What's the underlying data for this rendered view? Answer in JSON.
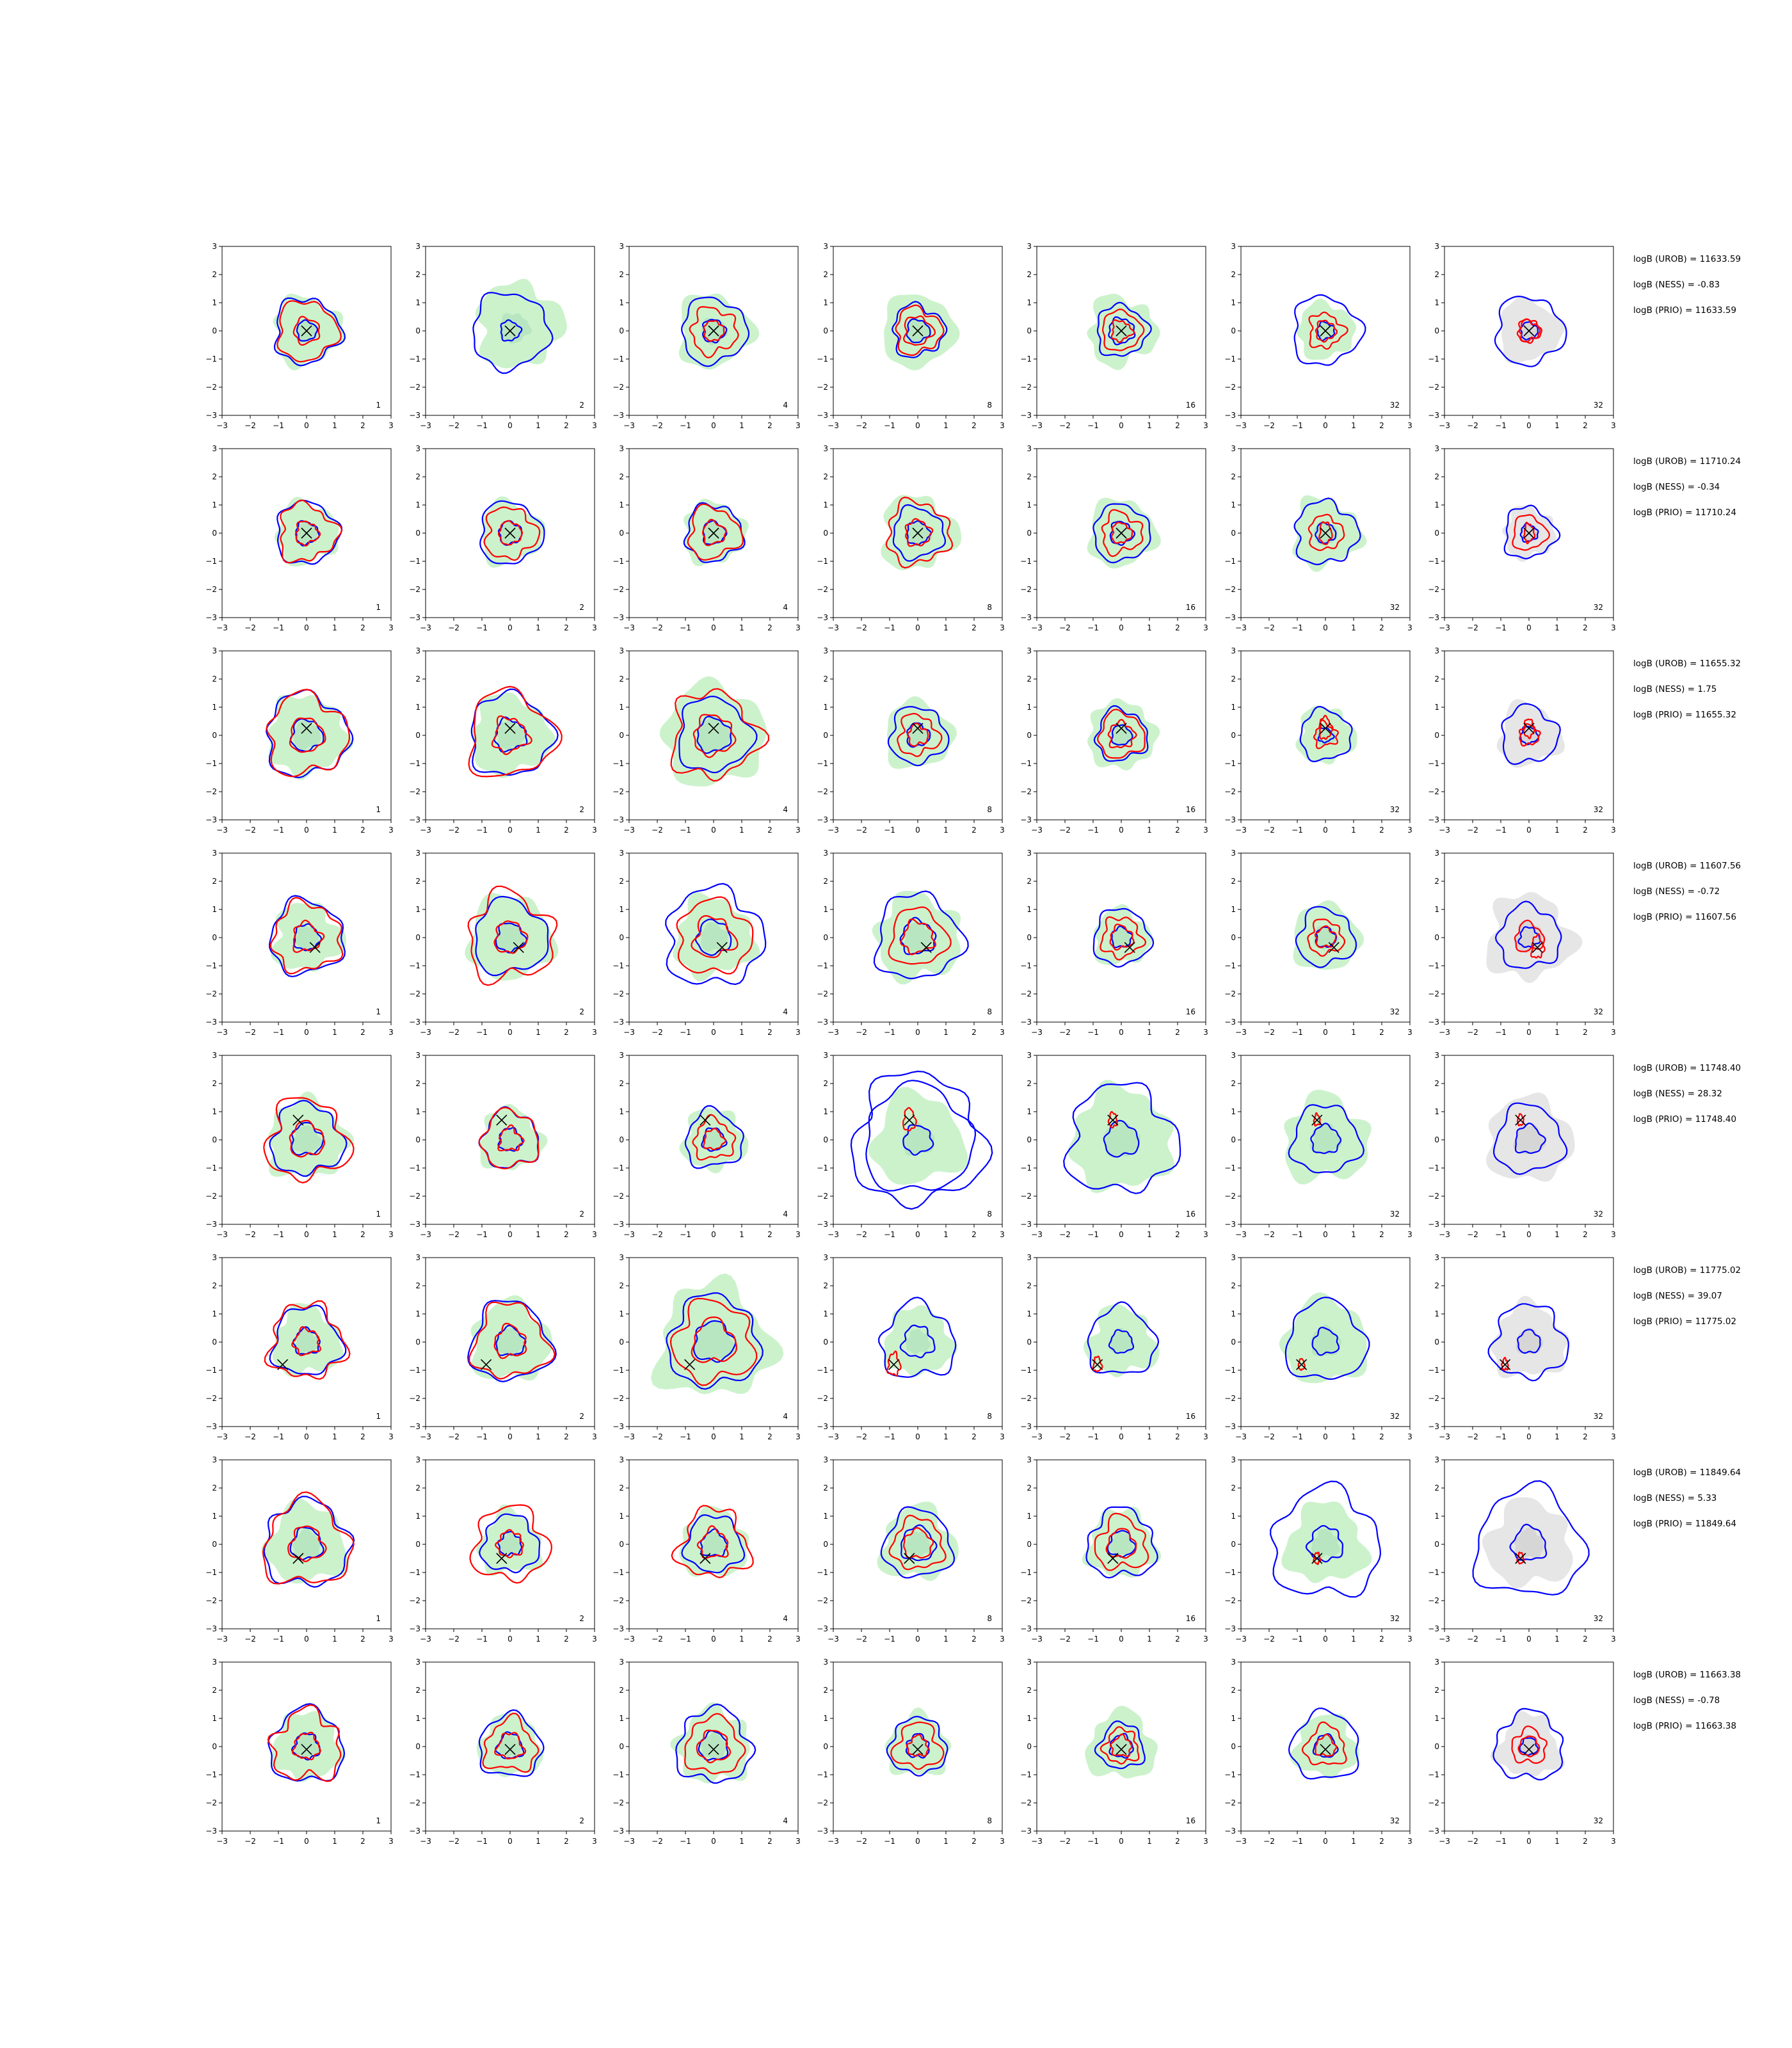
{
  "chart_data": {
    "type": "contour_grid",
    "rows": 8,
    "cols": 7,
    "xlim": [
      -3,
      3
    ],
    "ylim": [
      -3,
      3
    ],
    "xticks": [
      -3,
      -2,
      -1,
      0,
      1,
      2,
      3
    ],
    "yticks": [
      -3,
      -2,
      -1,
      0,
      1,
      2,
      3
    ],
    "column_labels": [
      "1",
      "2",
      "4",
      "8",
      "16",
      "32",
      "32"
    ],
    "colors": {
      "fill_green": "#ccf2cc",
      "fill_green_inner": "#b8e6c0",
      "fill_gray": "#e6e6e6",
      "fill_gray_inner": "#d6d6d6",
      "contour_blue": "#0000ff",
      "contour_red": "#ff0000",
      "marker": "#000000"
    },
    "rows_data": [
      {
        "marker": [
          0,
          0
        ],
        "annotations": [
          "logB (UROB) = 11633.59",
          "logB (NESS) = -0.83",
          "logB (PRIO) = 11633.59"
        ],
        "panels": [
          {
            "fill": 1.2,
            "blue": [
              0.35,
              1.15
            ],
            "red": [
              0.45,
              1.05
            ]
          },
          {
            "fill": 1.5,
            "blue": [
              0.35,
              1.35
            ],
            "red": [],
            "shift": [
              0.3,
              0.2
            ]
          },
          {
            "fill": 1.3,
            "blue": [
              0.4,
              1.15
            ],
            "red": [
              0.35,
              0.8
            ]
          },
          {
            "fill": 1.3,
            "blue": [
              0.4,
              0.9
            ],
            "red": [
              0.5,
              0.8
            ]
          },
          {
            "fill": 1.2,
            "blue": [
              0.45,
              0.9
            ],
            "red": [
              0.35,
              0.7
            ]
          },
          {
            "fill": 1.0,
            "blue": [
              0.3,
              1.2
            ],
            "red": [
              0.35,
              0.6
            ]
          },
          {
            "fill": 1.1,
            "blue": [
              0.3,
              1.2
            ],
            "red": [
              0.35,
              0.4
            ],
            "gray": true
          }
        ]
      },
      {
        "marker": [
          0,
          0
        ],
        "annotations": [
          "logB (UROB) = 11710.24",
          "logB (NESS) = -0.34",
          "logB (PRIO) = 11710.24"
        ],
        "panels": [
          {
            "fill": 1.1,
            "blue": [
              0.4,
              1.1
            ],
            "red": [
              0.4,
              1.0
            ]
          },
          {
            "fill": 1.1,
            "blue": [
              0.4,
              1.1
            ],
            "red": [
              0.4,
              0.9
            ]
          },
          {
            "fill": 1.1,
            "blue": [
              0.4,
              1.0
            ],
            "red": [
              0.4,
              0.9
            ]
          },
          {
            "fill": 1.3,
            "blue": [
              0.4,
              0.9
            ],
            "red": [
              0.45,
              1.1
            ]
          },
          {
            "fill": 1.2,
            "blue": [
              0.4,
              1.0
            ],
            "red": [
              0.35,
              0.7
            ]
          },
          {
            "fill": 1.2,
            "blue": [
              0.35,
              1.1
            ],
            "red": [
              0.3,
              0.6
            ]
          },
          {
            "fill": 0.9,
            "blue": [
              0.3,
              0.9
            ],
            "red": [
              0.25,
              0.6
            ],
            "gray": true
          }
        ]
      },
      {
        "marker": [
          0,
          0.25
        ],
        "annotations": [
          "logB (UROB) = 11655.32",
          "logB (NESS) = 1.75",
          "logB (PRIO) = 11655.32"
        ],
        "panels": [
          {
            "fill": 1.4,
            "blue": [
              0.55,
              1.45
            ],
            "red": [
              0.6,
              1.4
            ]
          },
          {
            "fill": 1.4,
            "blue": [
              0.55,
              1.45
            ],
            "red": [
              0.6,
              1.5
            ]
          },
          {
            "fill": 1.8,
            "blue": [
              0.6,
              1.3
            ],
            "red": [
              0.7,
              1.5
            ]
          },
          {
            "fill": 1.2,
            "blue": [
              0.4,
              1.0
            ],
            "red": [
              0.35,
              0.7
            ]
          },
          {
            "fill": 1.2,
            "blue": [
              0.35,
              0.9
            ],
            "red": [
              0.45,
              0.8
            ]
          },
          {
            "fill": 1.0,
            "blue": [
              0.25,
              0.9
            ],
            "red": [
              0.3,
              0.4
            ]
          },
          {
            "fill": 1.1,
            "blue": [
              0.3,
              1.0
            ],
            "red": [
              0.25,
              0.35
            ],
            "gray": true
          }
        ]
      },
      {
        "marker": [
          0.3,
          -0.35
        ],
        "annotations": [
          "logB (UROB) = 11607.56",
          "logB (NESS) = -0.72",
          "logB (PRIO) = 11607.56"
        ],
        "panels": [
          {
            "fill": 1.2,
            "blue": [
              0.45,
              1.3
            ],
            "red": [
              0.5,
              1.2
            ]
          },
          {
            "fill": 1.5,
            "blue": [
              0.5,
              1.3
            ],
            "red": [
              0.55,
              1.5
            ]
          },
          {
            "fill": 1.4,
            "blue": [
              0.6,
              1.7
            ],
            "red": [
              0.7,
              1.3
            ]
          },
          {
            "fill": 1.5,
            "blue": [
              0.6,
              1.5
            ],
            "red": [
              0.55,
              1.0
            ]
          },
          {
            "fill": 1.0,
            "blue": [
              0.35,
              1.0
            ],
            "red": [
              0.4,
              0.7
            ]
          },
          {
            "fill": 1.2,
            "blue": [
              0.35,
              1.0
            ],
            "red": [
              0.35,
              0.6
            ]
          },
          {
            "fill": 1.5,
            "blue": [
              0.35,
              1.1
            ],
            "red": [
              0.3,
              0.5
            ],
            "gray": true
          }
        ]
      },
      {
        "marker": [
          -0.3,
          0.7
        ],
        "annotations": [
          "logB (UROB) = 11748.40",
          "logB (NESS) = 28.32",
          "logB (PRIO) = 11748.40"
        ],
        "panels": [
          {
            "fill": 1.4,
            "blue": [
              0.55,
              1.25
            ],
            "red": [
              0.6,
              1.4
            ]
          },
          {
            "fill": 1.1,
            "blue": [
              0.4,
              1.0
            ],
            "red": [
              0.4,
              1.0
            ]
          },
          {
            "fill": 1.1,
            "blue": [
              0.4,
              1.0
            ],
            "red": [
              0.35,
              0.7
            ]
          },
          {
            "fill": 1.6,
            "blue": [
              0.5,
              1.9,
              2.3
            ],
            "red": [
              0.3
            ],
            "shift": [
              0,
              0
            ]
          },
          {
            "fill": 1.8,
            "blue": [
              0.6,
              1.9
            ],
            "red": [
              0.2
            ]
          },
          {
            "fill": 1.5,
            "blue": [
              0.5,
              1.2
            ],
            "red": [
              0.15
            ]
          },
          {
            "fill": 1.5,
            "blue": [
              0.5,
              1.2
            ],
            "red": [
              0.15
            ],
            "gray": true
          }
        ]
      },
      {
        "marker": [
          -0.85,
          -0.8
        ],
        "annotations": [
          "logB (UROB) = 11775.02",
          "logB (NESS) = 39.07",
          "logB (PRIO) = 11775.02"
        ],
        "panels": [
          {
            "fill": 1.2,
            "blue": [
              0.45,
              1.2
            ],
            "red": [
              0.45,
              1.3
            ]
          },
          {
            "fill": 1.4,
            "blue": [
              0.5,
              1.4
            ],
            "red": [
              0.55,
              1.3
            ]
          },
          {
            "fill": 2.0,
            "blue": [
              0.7,
              1.6
            ],
            "red": [
              0.75,
              1.4
            ]
          },
          {
            "fill": 1.2,
            "blue": [
              0.55,
              1.3
            ],
            "red": [
              0.3
            ]
          },
          {
            "fill": 1.2,
            "blue": [
              0.4,
              1.2
            ],
            "red": [
              0.2
            ]
          },
          {
            "fill": 1.5,
            "blue": [
              0.45,
              1.4
            ],
            "red": [
              0.15
            ]
          },
          {
            "fill": 1.3,
            "blue": [
              0.4,
              1.3
            ],
            "red": [
              0.15
            ],
            "gray": true
          }
        ]
      },
      {
        "marker": [
          -0.3,
          -0.5
        ],
        "annotations": [
          "logB (UROB) = 11849.64",
          "logB (NESS) = 5.33",
          "logB (PRIO) = 11849.64"
        ],
        "panels": [
          {
            "fill": 1.4,
            "blue": [
              0.55,
              1.5
            ],
            "red": [
              0.6,
              1.5
            ]
          },
          {
            "fill": 1.1,
            "blue": [
              0.4,
              1.0
            ],
            "red": [
              0.45,
              1.3
            ]
          },
          {
            "fill": 1.2,
            "blue": [
              0.45,
              1.0
            ],
            "red": [
              0.5,
              1.2
            ]
          },
          {
            "fill": 1.3,
            "blue": [
              0.6,
              1.2
            ],
            "red": [
              0.5,
              0.9
            ]
          },
          {
            "fill": 1.2,
            "blue": [
              0.45,
              1.2
            ],
            "red": [
              0.5,
              0.9
            ]
          },
          {
            "fill": 1.4,
            "blue": [
              0.6,
              1.9
            ],
            "red": [
              0.15
            ]
          },
          {
            "fill": 1.5,
            "blue": [
              0.6,
              1.9
            ],
            "red": [
              0.15
            ],
            "gray": true
          }
        ]
      },
      {
        "marker": [
          0,
          -0.1
        ],
        "annotations": [
          "logB (UROB) = 11663.38",
          "logB (NESS) = -0.78",
          "logB (PRIO) = 11663.38"
        ],
        "panels": [
          {
            "fill": 1.2,
            "blue": [
              0.45,
              1.3
            ],
            "red": [
              0.45,
              1.2
            ]
          },
          {
            "fill": 1.1,
            "blue": [
              0.45,
              1.1
            ],
            "red": [
              0.45,
              0.9
            ]
          },
          {
            "fill": 1.3,
            "blue": [
              0.5,
              1.3
            ],
            "red": [
              0.55,
              1.0
            ]
          },
          {
            "fill": 1.1,
            "blue": [
              0.4,
              1.0
            ],
            "red": [
              0.35,
              0.8
            ]
          },
          {
            "fill": 1.2,
            "blue": [
              0.4,
              0.8
            ],
            "red": [
              0.35,
              0.6
            ]
          },
          {
            "fill": 1.1,
            "blue": [
              0.4,
              1.2
            ],
            "red": [
              0.35,
              0.7
            ]
          },
          {
            "fill": 1.1,
            "blue": [
              0.3,
              1.2
            ],
            "red": [
              0.35,
              0.6
            ],
            "gray": true
          }
        ]
      }
    ]
  }
}
